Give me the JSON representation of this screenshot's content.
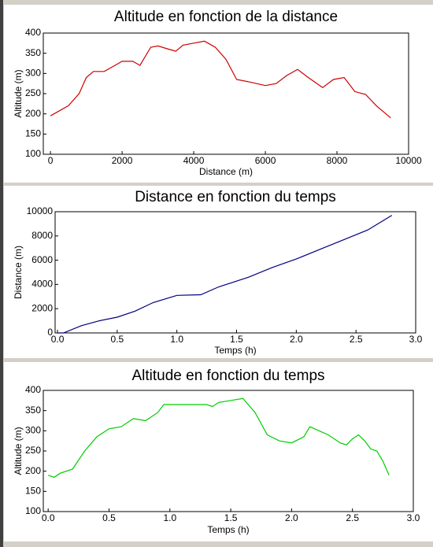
{
  "chart_data": [
    {
      "type": "line",
      "title": "Altitude en fonction de la distance",
      "xlabel": "Distance (m)",
      "ylabel": "Altitude (m)",
      "color": "#cc0000",
      "x": [
        0,
        500,
        800,
        1000,
        1200,
        1500,
        1800,
        2000,
        2300,
        2500,
        2800,
        3000,
        3300,
        3500,
        3700,
        4000,
        4300,
        4600,
        4900,
        5200,
        5500,
        6000,
        6300,
        6600,
        6900,
        7200,
        7600,
        7900,
        8200,
        8500,
        8800,
        9100,
        9500
      ],
      "values": [
        195,
        220,
        250,
        290,
        305,
        305,
        320,
        330,
        330,
        320,
        365,
        368,
        360,
        355,
        370,
        375,
        380,
        365,
        335,
        285,
        280,
        270,
        275,
        295,
        310,
        290,
        265,
        285,
        290,
        255,
        248,
        220,
        190
      ],
      "xlim": [
        -200,
        10000
      ],
      "ylim": [
        100,
        400
      ],
      "xticks": [
        0,
        2000,
        4000,
        6000,
        8000,
        10000
      ],
      "yticks": [
        100,
        150,
        200,
        250,
        300,
        350,
        400
      ]
    },
    {
      "type": "line",
      "title": "Distance en fonction du temps",
      "xlabel": "Temps (h)",
      "ylabel": "Distance (m)",
      "color": "#000080",
      "x": [
        0,
        0.05,
        0.2,
        0.35,
        0.5,
        0.65,
        0.8,
        1.0,
        1.2,
        1.35,
        1.6,
        1.8,
        2.0,
        2.2,
        2.4,
        2.6,
        2.8
      ],
      "values": [
        0,
        0,
        600,
        1000,
        1300,
        1800,
        2500,
        3100,
        3150,
        3800,
        4600,
        5400,
        6100,
        6900,
        7700,
        8500,
        9700
      ],
      "xlim": [
        -0.02,
        3.0
      ],
      "ylim": [
        0,
        10000
      ],
      "xticks": [
        {
          "value": 0,
          "label": "0.0"
        },
        0.5,
        {
          "value": 1,
          "label": "1.0"
        },
        1.5,
        {
          "value": 2,
          "label": "2.0"
        },
        2.5,
        {
          "value": 3,
          "label": "3.0"
        }
      ],
      "yticks": [
        0,
        2000,
        4000,
        6000,
        8000,
        10000
      ]
    },
    {
      "type": "line",
      "title": "Altitude en fonction du temps",
      "xlabel": "Temps (h)",
      "ylabel": "Altitude (m)",
      "color": "#00cc00",
      "x": [
        0,
        0.05,
        0.1,
        0.2,
        0.3,
        0.4,
        0.5,
        0.6,
        0.7,
        0.8,
        0.9,
        0.95,
        1.1,
        1.3,
        1.35,
        1.4,
        1.5,
        1.6,
        1.7,
        1.8,
        1.9,
        2.0,
        2.1,
        2.15,
        2.3,
        2.4,
        2.45,
        2.5,
        2.55,
        2.6,
        2.65,
        2.7,
        2.75,
        2.8
      ],
      "values": [
        190,
        185,
        195,
        205,
        250,
        285,
        305,
        310,
        330,
        325,
        345,
        365,
        365,
        365,
        360,
        370,
        375,
        380,
        345,
        290,
        275,
        270,
        285,
        310,
        290,
        270,
        265,
        280,
        290,
        275,
        255,
        250,
        225,
        190
      ],
      "xlim": [
        -0.04,
        3.0
      ],
      "ylim": [
        100,
        400
      ],
      "xticks": [
        {
          "value": 0,
          "label": "0.0"
        },
        0.5,
        {
          "value": 1,
          "label": "1.0"
        },
        1.5,
        {
          "value": 2,
          "label": "2.0"
        },
        2.5,
        {
          "value": 3,
          "label": "3.0"
        }
      ],
      "yticks": [
        100,
        150,
        200,
        250,
        300,
        350,
        400
      ]
    }
  ]
}
